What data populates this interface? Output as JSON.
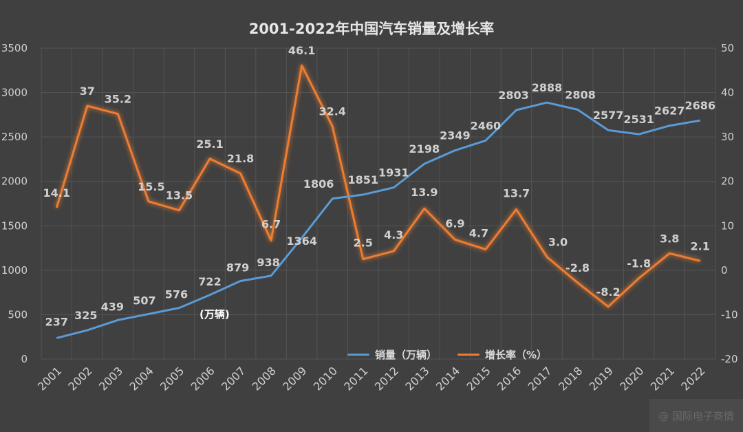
{
  "title": "2001-2022年中国汽车销量及增长率",
  "unit_note": "(万辆)",
  "watermark": "@ 国际电子商情",
  "colors": {
    "background": "#404040",
    "grid": "#555555",
    "sales_line": "#5b9bd5",
    "growth_line": "#ed7d31",
    "labels": "#d0d0d0"
  },
  "chart_data": {
    "type": "line",
    "title": "2001-2022年中国汽车销量及增长率",
    "categories": [
      "2001",
      "2002",
      "2003",
      "2004",
      "2005",
      "2006",
      "2007",
      "2008",
      "2009",
      "2010",
      "2011",
      "2012",
      "2013",
      "2014",
      "2015",
      "2016",
      "2017",
      "2018",
      "2019",
      "2020",
      "2021",
      "2022"
    ],
    "series": [
      {
        "name": "销量（万辆）",
        "axis": "left",
        "values": [
          237,
          325,
          439,
          507,
          576,
          722,
          879,
          938,
          1364,
          1806,
          1851,
          1931,
          2198,
          2349,
          2460,
          2803,
          2888,
          2808,
          2577,
          2531,
          2627,
          2686
        ],
        "labels": [
          "237",
          "325",
          "439",
          "507",
          "576",
          "722",
          "879",
          "938",
          "1364",
          "1806",
          "1851",
          "1931",
          "2198",
          "2349",
          "2460",
          "2803",
          "2888",
          "2808",
          "2577",
          "2531",
          "2627",
          "2686"
        ]
      },
      {
        "name": "增长率（%）",
        "axis": "right",
        "values": [
          14.1,
          37,
          35.2,
          15.5,
          13.5,
          25.1,
          21.8,
          6.7,
          46.1,
          32.4,
          2.5,
          4.3,
          13.9,
          6.9,
          4.7,
          13.7,
          3.0,
          -2.8,
          -8.2,
          -1.8,
          3.8,
          2.1
        ],
        "labels": [
          "14.1",
          "37",
          "35.2",
          "15.5",
          "13.5",
          "25.1",
          "21.8",
          "6.7",
          "46.1",
          "32.4",
          "2.5",
          "4.3",
          "13.9",
          "6.9",
          "4.7",
          "13.7",
          "3.0",
          "-2.8",
          "-8.2",
          "-1.8",
          "3.8",
          "2.1"
        ]
      }
    ],
    "y_left": {
      "ylim": [
        0,
        3500
      ],
      "ticks": [
        "0",
        "500",
        "1000",
        "1500",
        "2000",
        "2500",
        "3000",
        "3500"
      ]
    },
    "y_right": {
      "ylim": [
        -20,
        50
      ],
      "ticks": [
        "-20",
        "-10",
        "0",
        "10",
        "20",
        "30",
        "40",
        "50"
      ]
    },
    "grid": true,
    "legend_position": "bottom"
  }
}
